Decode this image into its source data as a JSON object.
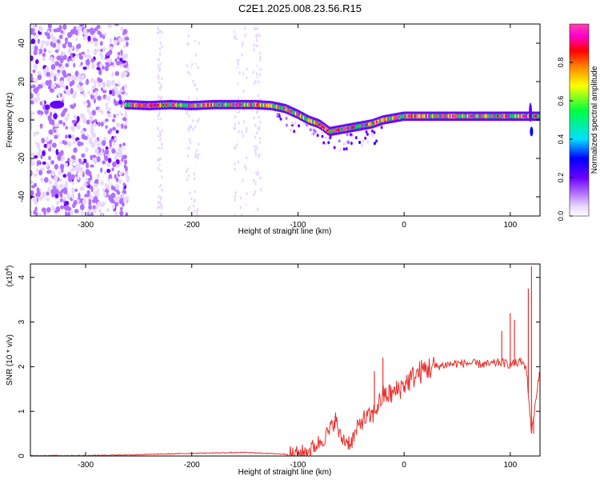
{
  "title": "C2E1.2025.008.23.56.R15",
  "chart_data": [
    {
      "type": "heatmap",
      "xlabel": "Height of straight line (km)",
      "ylabel": "Frequency (Hz)",
      "xlim": [
        -352,
        128
      ],
      "ylim": [
        -50,
        50
      ],
      "xticks": [
        -300,
        -200,
        -100,
        0,
        100
      ],
      "yticks": [
        -40,
        -20,
        0,
        20,
        40
      ],
      "grid": false,
      "colorbar": {
        "label": "Normalized spectral amplitude",
        "range": [
          0,
          1
        ],
        "ticks": [
          0.0,
          0.2,
          0.4,
          0.6,
          0.8
        ],
        "colormap": [
          "#ffffff",
          "#e8d8ff",
          "#b070ff",
          "#6a00ff",
          "#0000ff",
          "#00e0ff",
          "#00ff40",
          "#ffff00",
          "#ff8000",
          "#ff0000",
          "#ff00d0",
          "#ff44aa"
        ]
      },
      "ridge": {
        "x": [
          -262,
          -240,
          -220,
          -200,
          -180,
          -160,
          -140,
          -125,
          -112,
          -100,
          -90,
          -80,
          -70,
          -60,
          -50,
          -40,
          -30,
          -20,
          -10,
          0,
          20,
          40,
          60,
          80,
          100,
          115,
          120,
          128
        ],
        "y": [
          8,
          7.5,
          8,
          7.5,
          8,
          8,
          8,
          7.5,
          6,
          3,
          0,
          -2,
          -6,
          -5,
          -4,
          -3,
          -2,
          0,
          1,
          2,
          2,
          2,
          2,
          2,
          2,
          2,
          2,
          2
        ]
      }
    },
    {
      "type": "line",
      "xlabel": "Height of straight line (km)",
      "ylabel": "SNR (10 * v/v)",
      "yscale_label": "(x10",
      "yscale_exp": "4",
      "xlim": [
        -352,
        128
      ],
      "ylim": [
        0,
        4.3
      ],
      "xticks": [
        -300,
        -200,
        -100,
        0,
        100
      ],
      "yticks": [
        0,
        1,
        2,
        3,
        4
      ],
      "grid": false,
      "color": "#e8322f",
      "x": [
        -352,
        -300,
        -250,
        -200,
        -150,
        -110,
        -100,
        -90,
        -80,
        -70,
        -65,
        -60,
        -50,
        -40,
        -30,
        -20,
        -10,
        0,
        10,
        20,
        30,
        40,
        50,
        60,
        70,
        80,
        90,
        100,
        110,
        115,
        120,
        128
      ],
      "y": [
        0.01,
        0.01,
        0.03,
        0.06,
        0.08,
        0.04,
        0.05,
        0.12,
        0.3,
        0.55,
        0.85,
        0.4,
        0.3,
        0.8,
        0.9,
        1.35,
        1.4,
        1.6,
        1.8,
        1.95,
        2.0,
        2.05,
        2.07,
        2.08,
        2.06,
        2.05,
        2.1,
        2.05,
        2.1,
        2.0,
        0.5,
        2.0
      ],
      "spikes": [
        {
          "x": 92,
          "y": 2.8
        },
        {
          "x": 100,
          "y": 3.2
        },
        {
          "x": 104,
          "y": 3.05
        },
        {
          "x": 110,
          "y": 2.2
        },
        {
          "x": 117,
          "y": 3.75
        },
        {
          "x": 120,
          "y": 4.25
        },
        {
          "x": 122,
          "y": 0.5
        },
        {
          "x": -20,
          "y": 2.2
        },
        {
          "x": -28,
          "y": 1.9
        },
        {
          "x": -65,
          "y": 0.9
        }
      ]
    }
  ]
}
